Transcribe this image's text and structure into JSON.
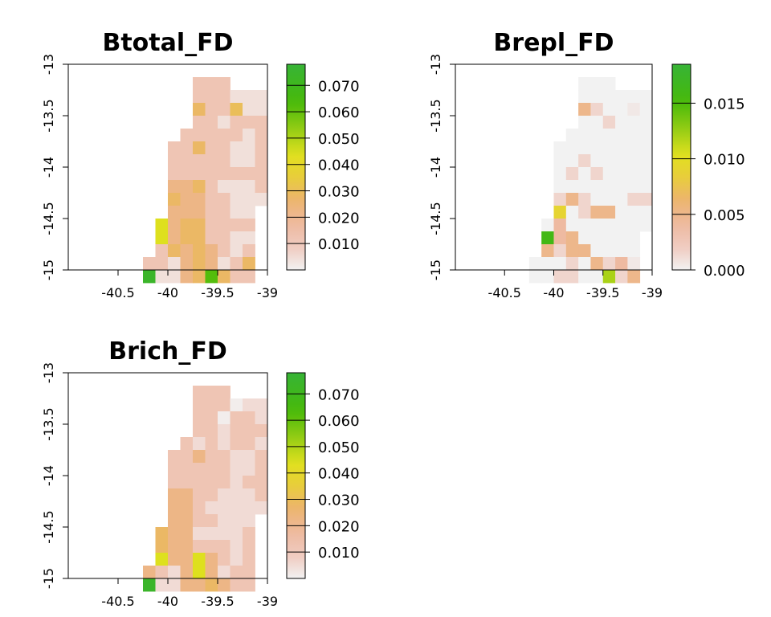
{
  "chart_data": [
    {
      "type": "heatmap",
      "title": "Btotal_FD",
      "xlim": [
        -41,
        -39
      ],
      "ylim": [
        -15,
        -13
      ],
      "cell_size": 0.125,
      "x_ticks": [
        "-40.5",
        "-40",
        "-39.5",
        "-39"
      ],
      "x_tick_values": [
        -40.5,
        -40,
        -39.5,
        -39
      ],
      "y_ticks": [
        "-13",
        "-13.5",
        "-14",
        "-14.5",
        "-15"
      ],
      "y_tick_values": [
        -13,
        -13.5,
        -14,
        -14.5,
        -15
      ],
      "colorbar": {
        "range": [
          0,
          0.078
        ],
        "labels": [
          "0.070",
          "0.060",
          "0.050",
          "0.040",
          "0.030",
          "0.020",
          "0.010"
        ],
        "values": [
          0.07,
          0.06,
          0.05,
          0.04,
          0.03,
          0.02,
          0.01
        ]
      },
      "grid_origin": {
        "x": -41,
        "y": -13
      },
      "rows": [
        "................",
        "..........ooo...",
        "..........oooeee",
        "..........YooEee",
        "..........ooeooo",
        ".........oooooeo",
        "........ooYooeeo",
        "........oooooeeo",
        "........oooooooo",
        "........OOYoeeeo",
        "........YOOooeee",
        "........OOOooee.",
        ".......ZOYYoooo.",
        ".......ZOYYooee.",
        ".......oYOYOoeo.",
        "......ooeOYOeoY.",
        "......GeeOYgYoo."
      ],
      "legend": {
        ".": "none",
        "e": 0.004,
        "o": 0.012,
        "O": 0.022,
        "Y": 0.028,
        "E": 0.03,
        "Z": 0.044,
        "g": 0.062,
        "G": 0.074
      }
    },
    {
      "type": "heatmap",
      "title": "Brepl_FD",
      "xlim": [
        -41,
        -39
      ],
      "ylim": [
        -15,
        -13
      ],
      "cell_size": 0.125,
      "x_ticks": [
        "-40.5",
        "-40",
        "-39.5",
        "-39"
      ],
      "x_tick_values": [
        -40.5,
        -40,
        -39.5,
        -39
      ],
      "y_ticks": [
        "-13",
        "-13.5",
        "-14",
        "-14.5",
        "-15"
      ],
      "y_tick_values": [
        -13,
        -13.5,
        -14,
        -14.5,
        -15
      ],
      "colorbar": {
        "range": [
          0,
          0.0185
        ],
        "labels": [
          "0.015",
          "0.010",
          "0.005",
          "0.000"
        ],
        "values": [
          0.015,
          0.01,
          0.005,
          0
        ]
      },
      "grid_origin": {
        "x": -41,
        "y": -13
      },
      "rows": [
        "................",
        "..........www...",
        "..........wwwwww",
        "..........OewwWw",
        "..........wwewww",
        ".........wwwwwww",
        "........wwwwwwww",
        "........wwewwwww",
        "........wewewwww",
        "........wwwwwwww",
        "........eOewwwee",
        "........ZweOOwww",
        ".......wowwwwwww",
        ".......GoOwwwww.",
        ".......OeOOwwww.",
        "......wwwewOeoW.",
        "......wweewwYeO."
      ],
      "legend": {
        ".": "none",
        "w": 0,
        "W": 0.0005,
        "e": 0.0015,
        "o": 0.004,
        "O": 0.005,
        "Z": 0.009,
        "Y": 0.012,
        "G": 0.016
      }
    },
    {
      "type": "heatmap",
      "title": "Brich_FD",
      "xlim": [
        -41,
        -39
      ],
      "ylim": [
        -15,
        -13
      ],
      "cell_size": 0.125,
      "x_ticks": [
        "-40.5",
        "-40",
        "-39.5",
        "-39"
      ],
      "x_tick_values": [
        -40.5,
        -40,
        -39.5,
        -39
      ],
      "y_ticks": [
        "-13",
        "-13.5",
        "-14",
        "-14.5",
        "-15"
      ],
      "y_tick_values": [
        -13,
        -13.5,
        -14,
        -14.5,
        -15
      ],
      "colorbar": {
        "range": [
          0,
          0.078
        ],
        "labels": [
          "0.070",
          "0.060",
          "0.050",
          "0.040",
          "0.030",
          "0.020",
          "0.010"
        ],
        "values": [
          0.07,
          0.06,
          0.05,
          0.04,
          0.03,
          0.02,
          0.01
        ]
      },
      "grid_origin": {
        "x": -41,
        "y": -13
      },
      "rows": [
        "................",
        "..........ooo...",
        "..........ooowee",
        "..........oowooe",
        "..........ooeooo",
        ".........oeoeooe",
        "........ooOooeeo",
        "........oooooeeo",
        "........oooooeoo",
        "........OOooeeeo",
        "........OOoeeeee",
        "........OOooeee.",
        ".......YOOeeeeo.",
        ".......YOOoooeo.",
        ".......ZOOZOoeo.",
        "......OoeOZOeoo.",
        "......GeeOOYOoo."
      ],
      "legend": {
        ".": "none",
        "w": 0.001,
        "e": 0.005,
        "o": 0.012,
        "O": 0.022,
        "Y": 0.028,
        "Z": 0.044,
        "G": 0.074
      }
    }
  ]
}
